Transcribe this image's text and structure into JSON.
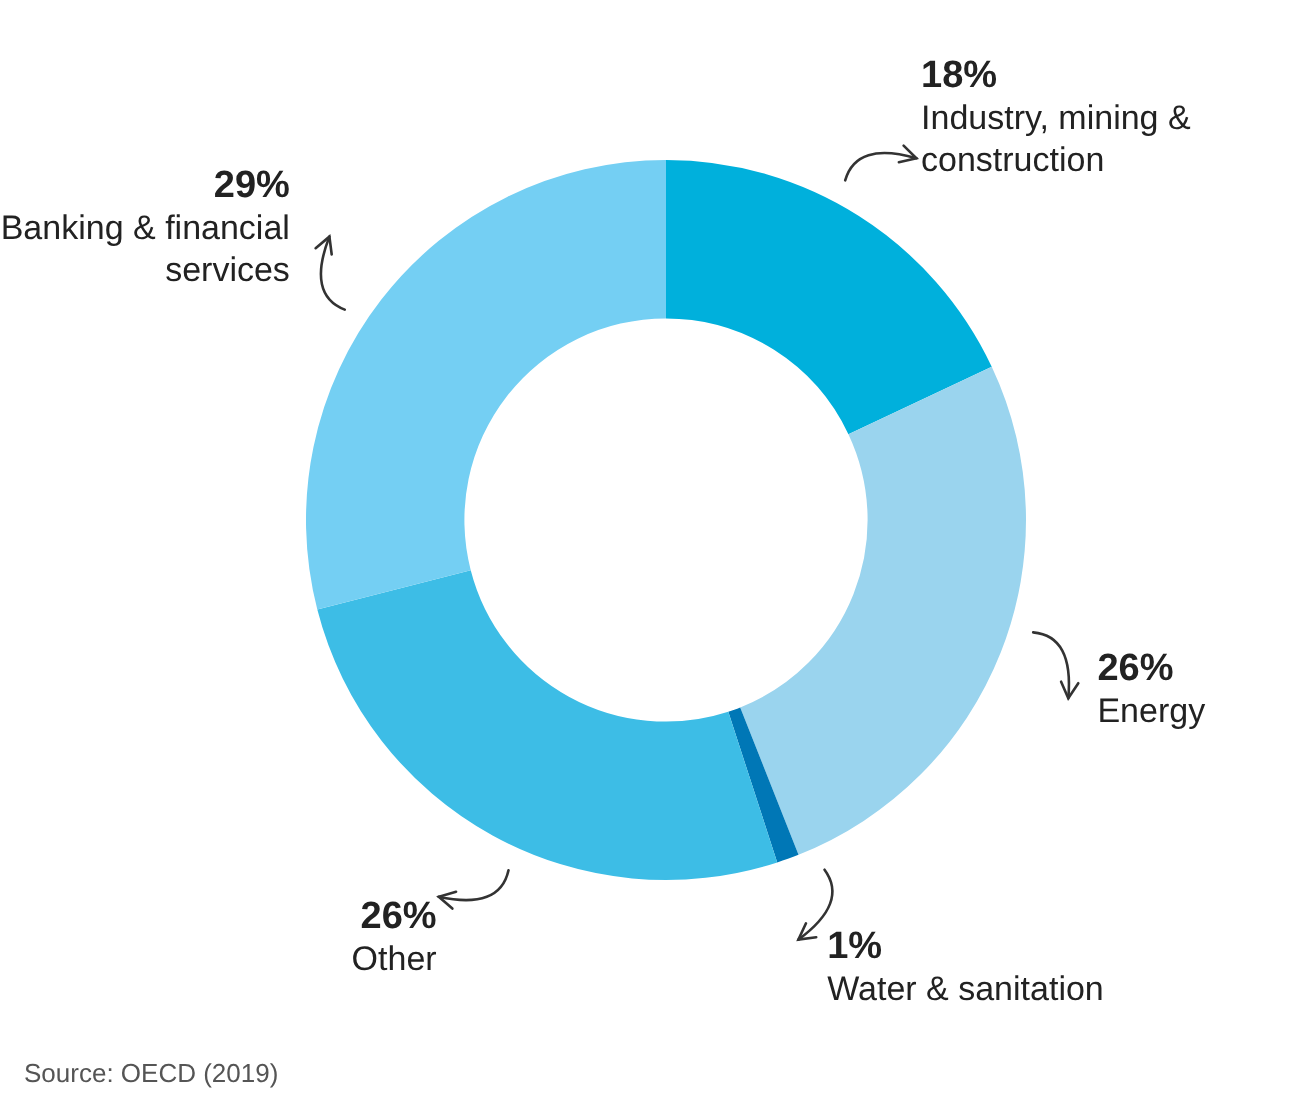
{
  "chart_data": {
    "type": "donut",
    "categories": [
      "Industry, mining & construction",
      "Energy",
      "Water & sanitation",
      "Other",
      "Banking & financial services"
    ],
    "values": [
      18,
      26,
      1,
      26,
      29
    ],
    "value_labels": [
      "18%",
      "26%",
      "1%",
      "26%",
      "29%"
    ],
    "colors": [
      "#00b0dc",
      "#9ad4ee",
      "#0077b6",
      "#3dbde6",
      "#74cff3"
    ],
    "legend": false,
    "annotations": [
      "Source: OECD (2019)"
    ]
  }
}
